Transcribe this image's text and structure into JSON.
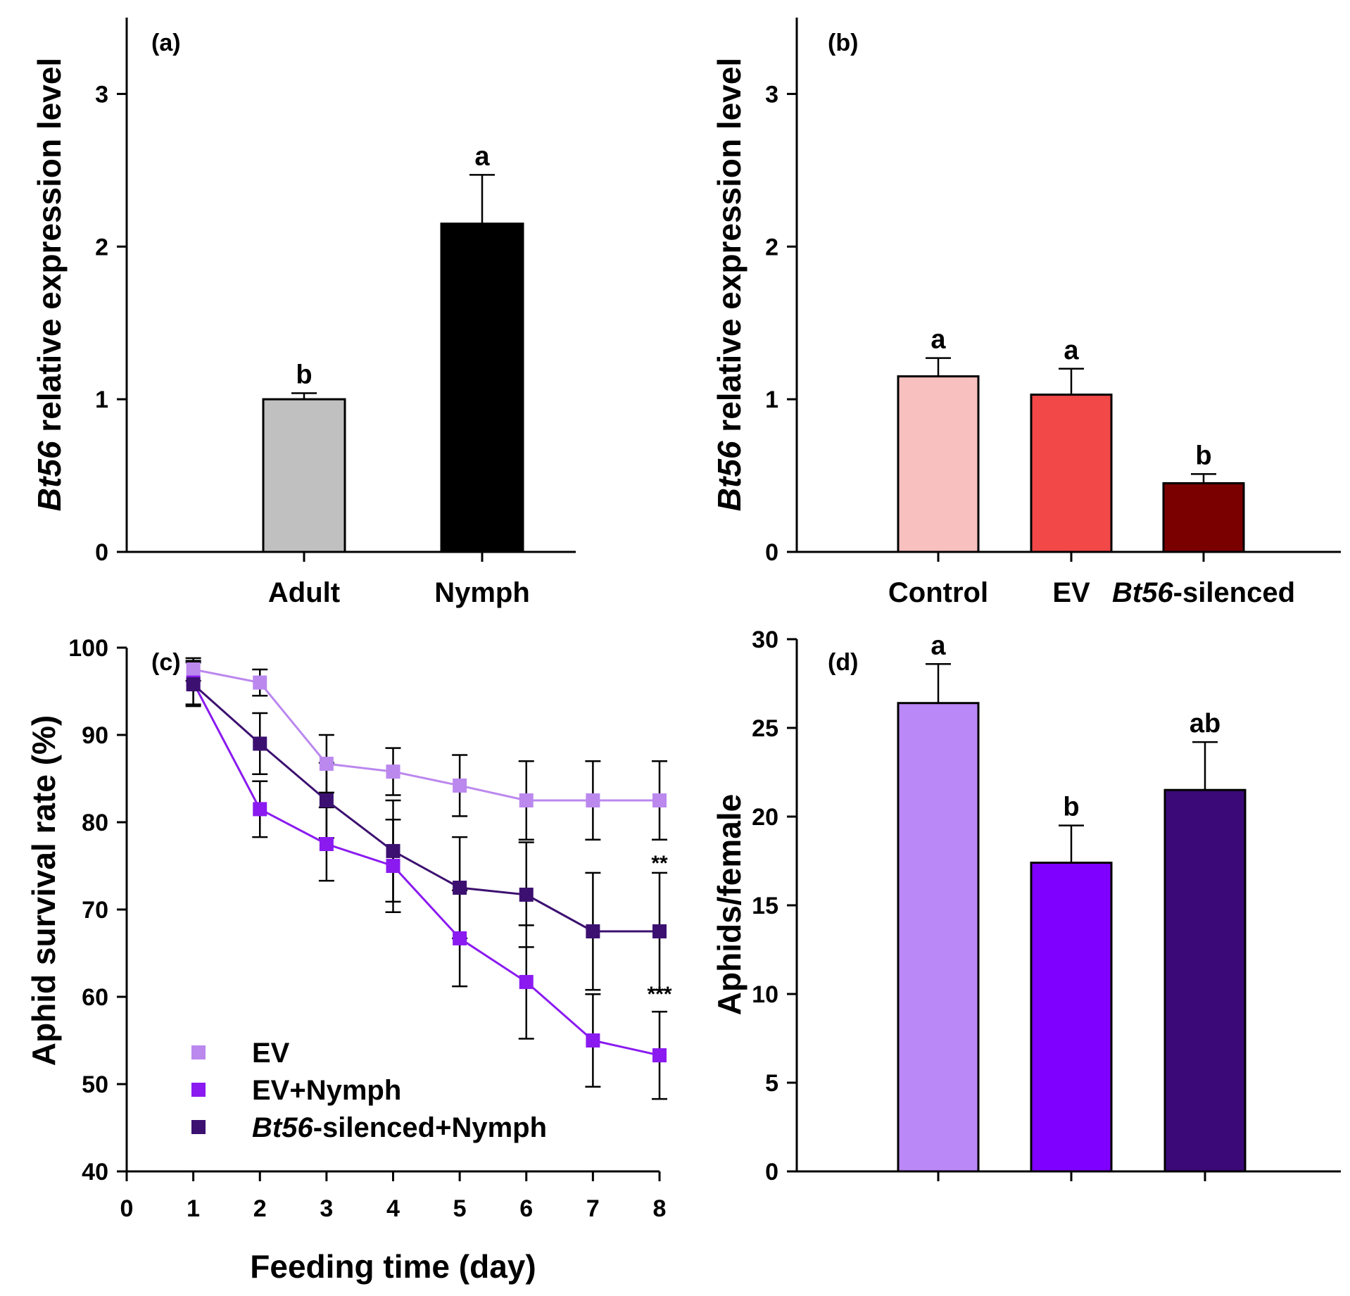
{
  "chart_data": [
    {
      "id": "a",
      "panel_label": "(a)",
      "type": "bar",
      "ylabel_italic": "Bt56",
      "ylabel_rest": " relative expression level",
      "ylim": [
        0,
        3.5
      ],
      "yticks": [
        0,
        1,
        2,
        3
      ],
      "categories": [
        {
          "label": "Adult",
          "italic": "",
          "rest": "Adult"
        },
        {
          "label": "Nymph",
          "italic": "",
          "rest": "Nymph"
        }
      ],
      "values": [
        1.0,
        2.15
      ],
      "errors": [
        0.04,
        0.32
      ],
      "letters": [
        "b",
        "a"
      ],
      "colors": [
        "#c0c0c0",
        "#000000"
      ]
    },
    {
      "id": "b",
      "panel_label": "(b)",
      "type": "bar",
      "ylabel_italic": "Bt56",
      "ylabel_rest": " relative expression level",
      "ylim": [
        0,
        3.5
      ],
      "yticks": [
        0,
        1,
        2,
        3
      ],
      "categories": [
        {
          "label": "Control",
          "italic": "",
          "rest": "Control"
        },
        {
          "label": "EV",
          "italic": "",
          "rest": "EV"
        },
        {
          "label": "Bt56-silenced",
          "italic": "Bt56",
          "rest": "-silenced"
        }
      ],
      "values": [
        1.15,
        1.03,
        0.45
      ],
      "errors": [
        0.12,
        0.17,
        0.06
      ],
      "letters": [
        "a",
        "a",
        "b"
      ],
      "colors": [
        "#f9c0c0",
        "#f24848",
        "#7a0000"
      ]
    },
    {
      "id": "c",
      "panel_label": "(c)",
      "type": "line",
      "xlabel": "Feeding time (day)",
      "ylabel": "Aphid survival rate (%)",
      "xlim": [
        0,
        8
      ],
      "xticks": [
        0,
        1,
        2,
        3,
        4,
        5,
        6,
        7,
        8
      ],
      "ylim": [
        40,
        100
      ],
      "yticks": [
        40,
        50,
        60,
        70,
        80,
        90,
        100
      ],
      "x": [
        1,
        2,
        3,
        4,
        5,
        6,
        7,
        8
      ],
      "series": [
        {
          "name": "EV",
          "legend_italic": "",
          "legend_rest": "EV",
          "color": "#bb88ee",
          "values": [
            97.5,
            96.0,
            86.7,
            85.8,
            84.2,
            82.5,
            82.5,
            82.5
          ],
          "errors": [
            1.3,
            1.5,
            3.3,
            2.7,
            3.5,
            4.5,
            4.5,
            4.5
          ]
        },
        {
          "name": "EV+Nymph",
          "legend_italic": "",
          "legend_rest": "EV+Nymph",
          "color": "#8a1af0",
          "values": [
            96.0,
            81.5,
            77.5,
            75.0,
            66.7,
            61.7,
            55.0,
            53.3
          ],
          "errors": [
            2.5,
            3.2,
            4.2,
            5.3,
            5.5,
            6.5,
            5.3,
            5.0
          ]
        },
        {
          "name": "Bt56-silenced+Nymph",
          "legend_italic": "Bt56",
          "legend_rest": "-silenced+Nymph",
          "color": "#3c1070",
          "values": [
            95.8,
            89.0,
            82.5,
            76.7,
            72.5,
            71.7,
            67.5,
            67.5
          ],
          "errors": [
            2.5,
            3.5,
            4.3,
            5.8,
            5.8,
            6.0,
            6.7,
            6.7
          ]
        }
      ],
      "annotations": [
        {
          "x": 8,
          "y": 74.5,
          "text": "**"
        },
        {
          "x": 8,
          "y": 59.5,
          "text": "***"
        }
      ]
    },
    {
      "id": "d",
      "panel_label": "(d)",
      "type": "bar",
      "ylabel": "Aphids/female",
      "ylim": [
        0,
        30
      ],
      "yticks": [
        0,
        5,
        10,
        15,
        20,
        25,
        30
      ],
      "categories": [
        "",
        "",
        ""
      ],
      "values": [
        26.4,
        17.4,
        21.5
      ],
      "errors": [
        2.2,
        2.1,
        2.7
      ],
      "letters": [
        "a",
        "b",
        "ab"
      ],
      "colors": [
        "#bb88f7",
        "#8000ff",
        "#3c0a78"
      ]
    }
  ]
}
